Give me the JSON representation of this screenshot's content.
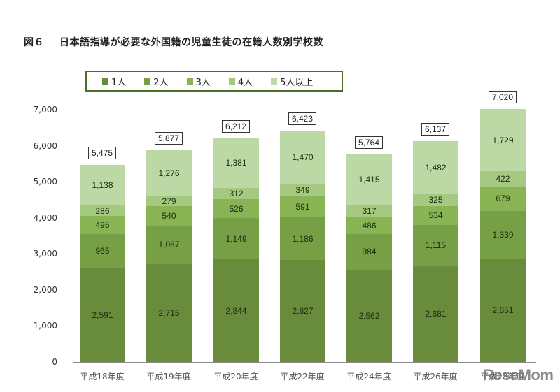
{
  "title": {
    "figure_label": "図６",
    "text": "日本語指導が必要な外国籍の児童生徒の在籍人数別学校数"
  },
  "legend": [
    {
      "label": "1人",
      "color": "#688c3c"
    },
    {
      "label": "2人",
      "color": "#77a046"
    },
    {
      "label": "3人",
      "color": "#88b453"
    },
    {
      "label": "4人",
      "color": "#a5c980"
    },
    {
      "label": "5人以上",
      "color": "#bcd8a4"
    }
  ],
  "y_axis": {
    "ticks": [
      "0",
      "1,000",
      "2,000",
      "3,000",
      "4,000",
      "5,000",
      "6,000",
      "7,000"
    ]
  },
  "x_axis": {
    "labels": [
      "平成18年度",
      "平成19年度",
      "平成20年度",
      "平成22年度",
      "平成24年度",
      "平成26年度",
      "平成28年度"
    ]
  },
  "totals_labels": [
    "5,475",
    "5,877",
    "6,212",
    "6,423",
    "5,764",
    "6,137",
    "7,020"
  ],
  "segment_labels": [
    [
      "2,591",
      "965",
      "495",
      "286",
      "1,138"
    ],
    [
      "2,715",
      "1,067",
      "540",
      "279",
      "1,276"
    ],
    [
      "2,844",
      "1,149",
      "526",
      "312",
      "1,381"
    ],
    [
      "2,827",
      "1,186",
      "591",
      "349",
      "1,470"
    ],
    [
      "2,562",
      "984",
      "486",
      "317",
      "1,415"
    ],
    [
      "2,681",
      "1,115",
      "534",
      "325",
      "1,482"
    ],
    [
      "2,851",
      "1,339",
      "679",
      "422",
      "1,729"
    ]
  ],
  "watermark": "ReseMom",
  "chart_data": {
    "type": "bar",
    "stacked": true,
    "title": "図６ 日本語指導が必要な外国籍の児童生徒の在籍人数別学校数",
    "xlabel": "",
    "ylabel": "",
    "ylim": [
      0,
      7000
    ],
    "yticks": [
      0,
      1000,
      2000,
      3000,
      4000,
      5000,
      6000,
      7000
    ],
    "grid": false,
    "legend_position": "top",
    "categories": [
      "平成18年度",
      "平成19年度",
      "平成20年度",
      "平成22年度",
      "平成24年度",
      "平成26年度",
      "平成28年度"
    ],
    "series": [
      {
        "name": "1人",
        "color": "#688c3c",
        "values": [
          2591,
          2715,
          2844,
          2827,
          2562,
          2681,
          2851
        ]
      },
      {
        "name": "2人",
        "color": "#77a046",
        "values": [
          965,
          1067,
          1149,
          1186,
          984,
          1115,
          1339
        ]
      },
      {
        "name": "3人",
        "color": "#88b453",
        "values": [
          495,
          540,
          526,
          591,
          486,
          534,
          679
        ]
      },
      {
        "name": "4人",
        "color": "#a5c980",
        "values": [
          286,
          279,
          312,
          349,
          317,
          325,
          422
        ]
      },
      {
        "name": "5人以上",
        "color": "#bcd8a4",
        "values": [
          1138,
          1276,
          1381,
          1470,
          1415,
          1482,
          1729
        ]
      }
    ],
    "totals": [
      5475,
      5877,
      6212,
      6423,
      5764,
      6137,
      7020
    ]
  }
}
